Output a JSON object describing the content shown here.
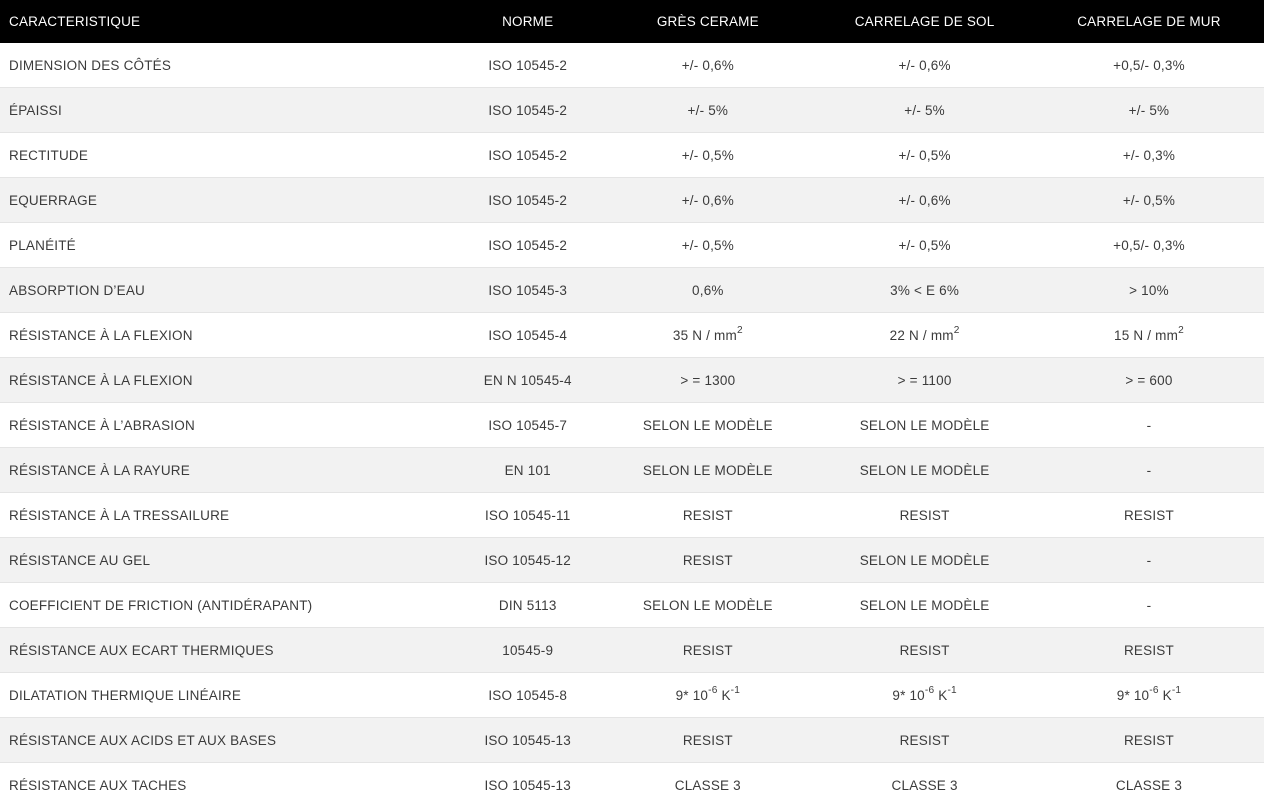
{
  "table": {
    "columns": [
      {
        "key": "caracteristique",
        "label": "CARACTERISTIQUE"
      },
      {
        "key": "norme",
        "label": "NORME"
      },
      {
        "key": "gres-cerame",
        "label": "GRÈS CERAME"
      },
      {
        "key": "carrelage-de-sol",
        "label": "CARRELAGE DE SOL"
      },
      {
        "key": "carrelage-de-mur",
        "label": "CARRELAGE DE MUR"
      }
    ],
    "rows": [
      [
        "DIMENSION DES CÔTÉS",
        "ISO 10545-2",
        "+/- 0,6%",
        "+/- 0,6%",
        "+0,5/- 0,3%"
      ],
      [
        "ÉPAISSI",
        "ISO 10545-2",
        "+/- 5%",
        "+/- 5%",
        "+/- 5%"
      ],
      [
        "RECTITUDE",
        "ISO 10545-2",
        "+/- 0,5%",
        "+/- 0,5%",
        "+/- 0,3%"
      ],
      [
        "EQUERRAGE",
        "ISO 10545-2",
        "+/- 0,6%",
        "+/- 0,6%",
        "+/- 0,5%"
      ],
      [
        "PLANÉITÉ",
        "ISO 10545-2",
        "+/- 0,5%",
        "+/- 0,5%",
        "+0,5/- 0,3%"
      ],
      [
        "ABSORPTION D’EAU",
        "ISO 10545-3",
        "0,6%",
        "3% < E 6%",
        "> 10%"
      ],
      [
        "RÉSISTANCE À LA FLEXION",
        "ISO 10545-4",
        "35 N / mm^{2}",
        "22 N / mm^{2}",
        "15 N / mm^{2}"
      ],
      [
        "RÉSISTANCE À LA FLEXION",
        "EN N 10545-4",
        "> = 1300",
        "> = 1100",
        "> = 600"
      ],
      [
        "RÉSISTANCE À L’ABRASION",
        "ISO 10545-7",
        "SELON LE MODÈLE",
        "SELON LE MODÈLE",
        "-"
      ],
      [
        "RÉSISTANCE À LA RAYURE",
        "EN 101",
        "SELON LE MODÈLE",
        "SELON LE MODÈLE",
        "-"
      ],
      [
        "RÉSISTANCE À LA TRESSAILURE",
        "ISO 10545-11",
        "RESIST",
        "RESIST",
        "RESIST"
      ],
      [
        "RÉSISTANCE AU GEL",
        "ISO 10545-12",
        "RESIST",
        "SELON LE MODÈLE",
        "-"
      ],
      [
        "COEFFICIENT DE FRICTION (ANTIDÉRAPANT)",
        "DIN 5113",
        "SELON LE MODÈLE",
        "SELON LE MODÈLE",
        "-"
      ],
      [
        "RÉSISTANCE AUX ECART THERMIQUES",
        "10545-9",
        "RESIST",
        "RESIST",
        "RESIST"
      ],
      [
        "DILATATION THERMIQUE LINÉAIRE",
        "ISO 10545-8",
        "9* 10^{-6} K^{-1}",
        "9* 10^{-6} K^{-1}",
        "9* 10^{-6} K^{-1}"
      ],
      [
        "RÉSISTANCE AUX ACIDS ET AUX BASES",
        "ISO 10545-13",
        "RESIST",
        "RESIST",
        "RESIST"
      ],
      [
        "RÉSISTANCE AUX TACHES",
        "ISO 10545-13",
        "CLASSE 3",
        "CLASSE 3",
        "CLASSE 3"
      ]
    ]
  },
  "colors": {
    "header_bg": "#000000",
    "header_text": "#ffffff",
    "row_bg": "#ffffff",
    "row_alt_bg": "#f2f2f2",
    "border": "#e4e4e4",
    "body_text": "#3b3b3b"
  }
}
